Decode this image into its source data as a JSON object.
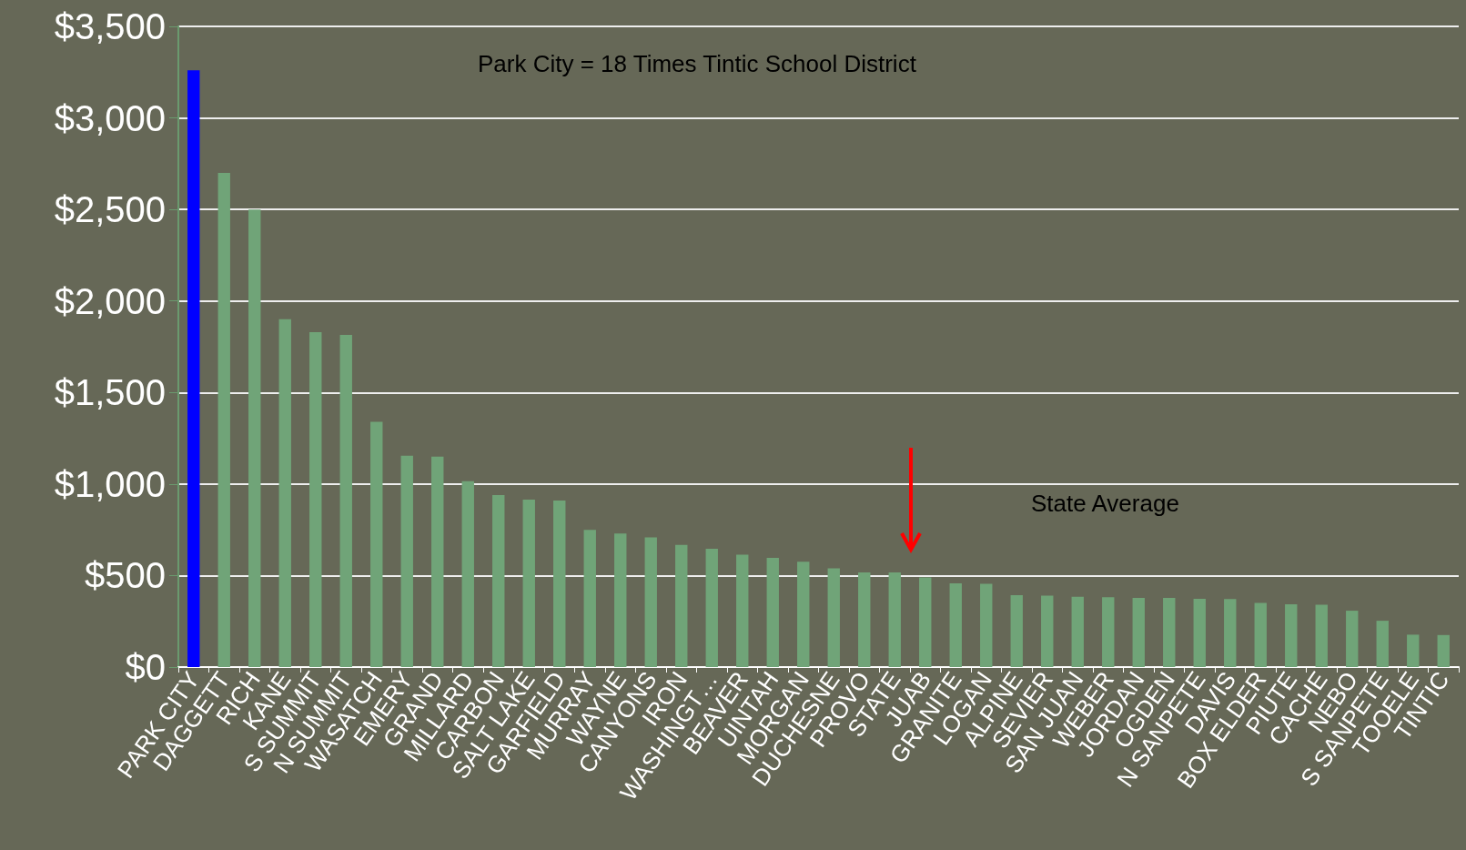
{
  "chart_data": {
    "type": "bar",
    "categories": [
      "PARK CITY",
      "DAGGETT",
      "RICH",
      "KANE",
      "S SUMMIT",
      "N SUMMIT",
      "WASATCH",
      "EMERY",
      "GRAND",
      "MILLARD",
      "CARBON",
      "SALT LAKE",
      "GARFIELD",
      "MURRAY",
      "WAYNE",
      "CANYONS",
      "IRON",
      "WASHINGT…",
      "BEAVER",
      "UINTAH",
      "MORGAN",
      "DUCHESNE",
      "PROVO",
      "STATE",
      "JUAB",
      "GRANITE",
      "LOGAN",
      "ALPINE",
      "SEVIER",
      "SAN JUAN",
      "WEBER",
      "JORDAN",
      "OGDEN",
      "N SANPETE",
      "DAVIS",
      "BOX ELDER",
      "PIUTE",
      "CACHE",
      "NEBO",
      "S SANPETE",
      "TOOELE",
      "TINTIC"
    ],
    "values": [
      3260,
      2700,
      2500,
      1900,
      1830,
      1815,
      1340,
      1155,
      1150,
      1015,
      940,
      915,
      910,
      750,
      730,
      708,
      667,
      646,
      614,
      596,
      576,
      540,
      517,
      517,
      490,
      457,
      455,
      393,
      390,
      384,
      381,
      378,
      378,
      373,
      372,
      351,
      343,
      340,
      308,
      253,
      177,
      175
    ],
    "colors": [
      "#0000ff",
      "#70a478",
      "#70a478",
      "#70a478",
      "#70a478",
      "#70a478",
      "#70a478",
      "#70a478",
      "#70a478",
      "#70a478",
      "#70a478",
      "#70a478",
      "#70a478",
      "#70a478",
      "#70a478",
      "#70a478",
      "#70a478",
      "#70a478",
      "#70a478",
      "#70a478",
      "#70a478",
      "#70a478",
      "#70a478",
      "#70a478",
      "#70a478",
      "#70a478",
      "#70a478",
      "#70a478",
      "#70a478",
      "#70a478",
      "#70a478",
      "#70a478",
      "#70a478",
      "#70a478",
      "#70a478",
      "#70a478",
      "#70a478",
      "#70a478",
      "#70a478",
      "#70a478",
      "#70a478",
      "#70a478"
    ],
    "ylim": [
      0,
      3500
    ],
    "yticks": [
      {
        "value": 0,
        "label": "$0"
      },
      {
        "value": 500,
        "label": "$500"
      },
      {
        "value": 1000,
        "label": "$1,000"
      },
      {
        "value": 1500,
        "label": "$1,500"
      },
      {
        "value": 2000,
        "label": "$2,000"
      },
      {
        "value": 2500,
        "label": "$2,500"
      },
      {
        "value": 3000,
        "label": "$3,000"
      },
      {
        "value": 3500,
        "label": "$3,500"
      }
    ],
    "grid": "y",
    "annotations": [
      "Park City = 18 Times Tintic School District",
      "State Average"
    ]
  }
}
